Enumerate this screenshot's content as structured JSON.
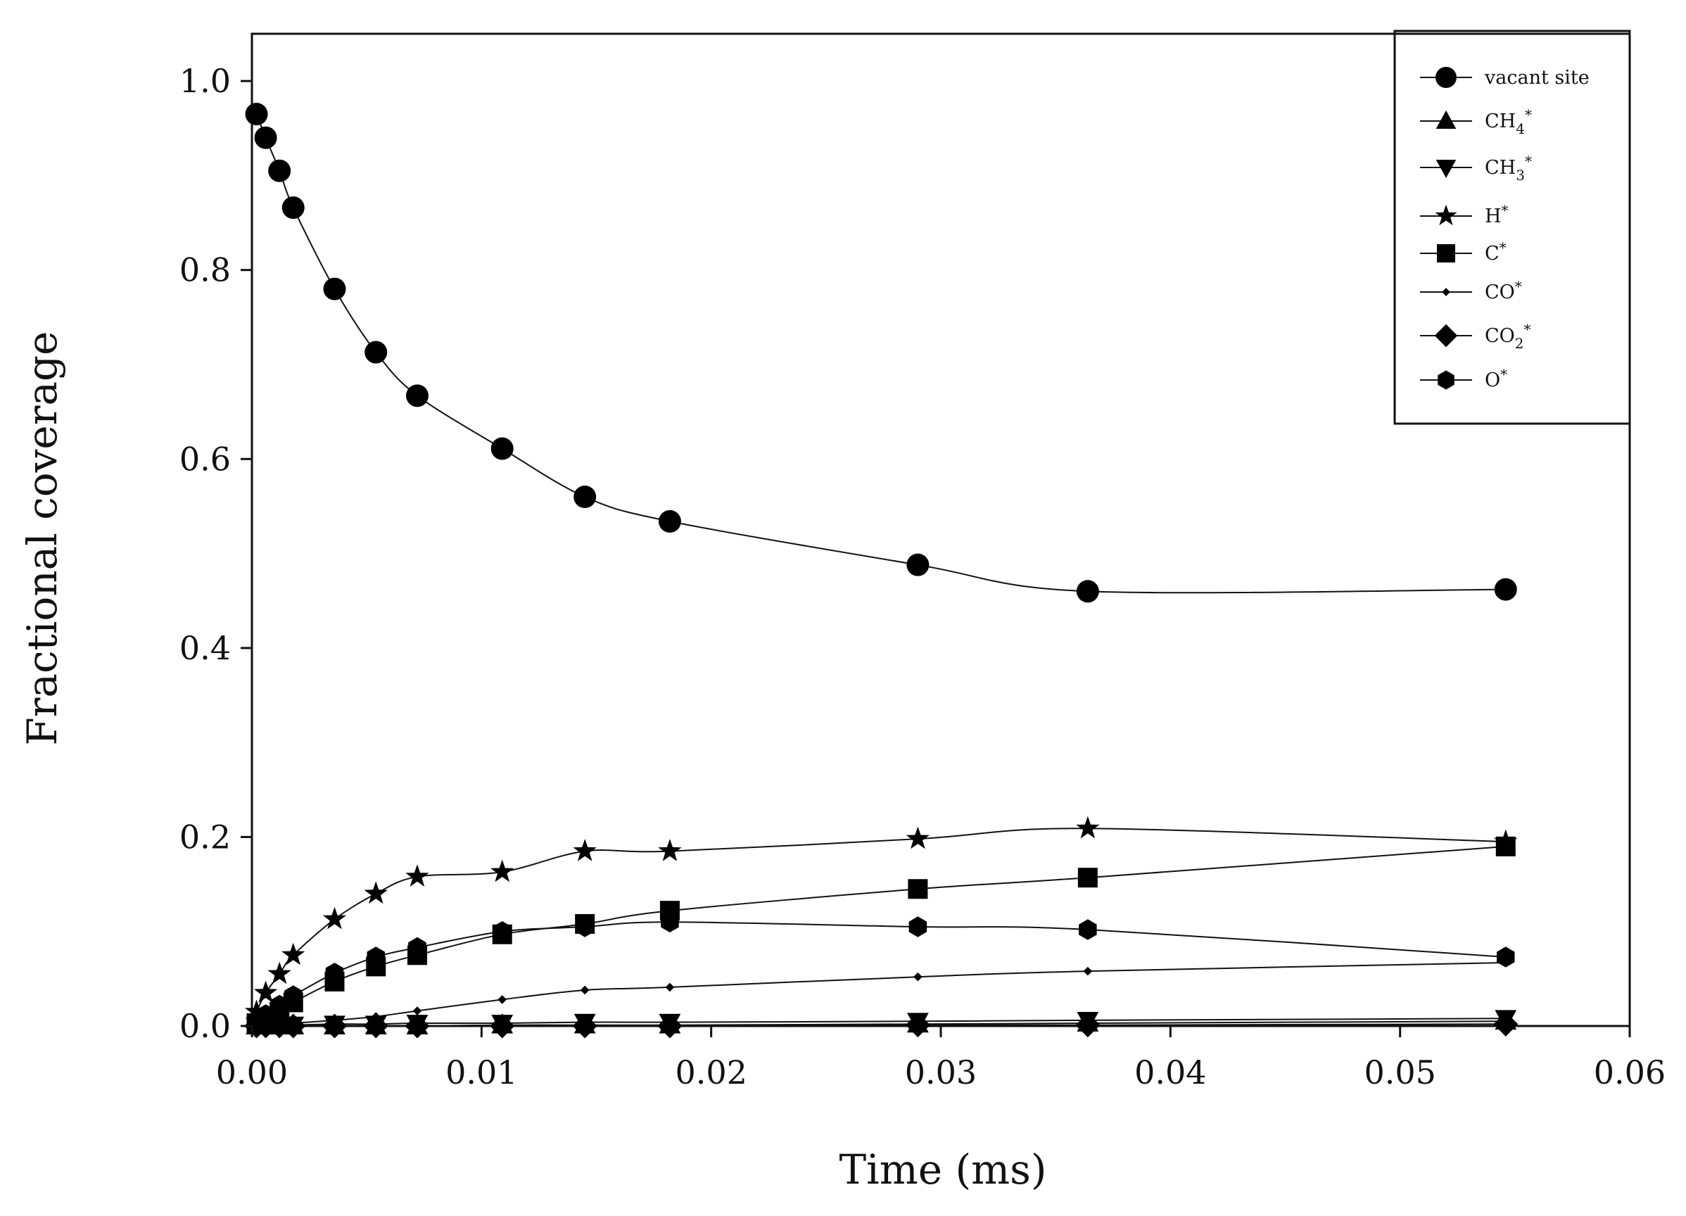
{
  "chart_data": {
    "type": "line",
    "title": "",
    "xlabel": "Time (ms)",
    "ylabel": "Fractional coverage",
    "xlim": [
      0,
      0.06
    ],
    "ylim": [
      0,
      1.05
    ],
    "xticks": [
      0,
      0.01,
      0.02,
      0.03,
      0.04,
      0.05,
      0.06
    ],
    "xtick_labels": [
      "0.00",
      "0.01",
      "0.02",
      "0.03",
      "0.04",
      "0.05",
      "0.06"
    ],
    "yticks": [
      0,
      0.2,
      0.4,
      0.6,
      0.8,
      1.0
    ],
    "ytick_labels": [
      "0.0",
      "0.2",
      "0.4",
      "0.6",
      "0.8",
      "1.0"
    ],
    "legend_position": "top-right",
    "grid": false,
    "x": [
      0.0002,
      0.0006,
      0.0012,
      0.0018,
      0.0036,
      0.0054,
      0.0072,
      0.0109,
      0.0145,
      0.0182,
      0.029,
      0.0364,
      0.0546
    ],
    "series": [
      {
        "name": "vacant site",
        "label_main": "vacant site",
        "label_sub": "",
        "label_sup": "",
        "marker": "circle",
        "values": [
          0.965,
          0.94,
          0.905,
          0.866,
          0.78,
          0.713,
          0.667,
          0.611,
          0.56,
          0.534,
          0.488,
          0.46,
          0.462
        ]
      },
      {
        "name": "CH4*",
        "label_main": "CH",
        "label_sub": "4",
        "label_sup": "*",
        "marker": "triangle-up",
        "values": [
          0.0,
          0.0,
          0.0,
          0.0,
          0.0,
          0.0,
          0.0,
          0.001,
          0.001,
          0.001,
          0.002,
          0.003,
          0.005
        ]
      },
      {
        "name": "CH3*",
        "label_main": "CH",
        "label_sub": "3",
        "label_sup": "*",
        "marker": "triangle-down",
        "values": [
          0.0,
          0.0,
          0.001,
          0.001,
          0.002,
          0.002,
          0.003,
          0.003,
          0.004,
          0.004,
          0.005,
          0.006,
          0.008
        ]
      },
      {
        "name": "H*",
        "label_main": "H",
        "label_sub": "",
        "label_sup": "*",
        "marker": "star",
        "values": [
          0.015,
          0.035,
          0.055,
          0.075,
          0.113,
          0.14,
          0.158,
          0.163,
          0.185,
          0.185,
          0.198,
          0.209,
          0.195
        ]
      },
      {
        "name": "C*",
        "label_main": "C",
        "label_sub": "",
        "label_sup": "*",
        "marker": "square",
        "values": [
          0.003,
          0.008,
          0.015,
          0.025,
          0.047,
          0.063,
          0.075,
          0.097,
          0.108,
          0.122,
          0.145,
          0.157,
          0.19
        ]
      },
      {
        "name": "CO*",
        "label_main": "CO",
        "label_sub": "",
        "label_sup": "*",
        "marker": "small-diamond",
        "values": [
          0.0,
          0.001,
          0.002,
          0.003,
          0.006,
          0.01,
          0.016,
          0.028,
          0.038,
          0.041,
          0.052,
          0.058,
          0.067
        ]
      },
      {
        "name": "CO2*",
        "label_main": "CO",
        "label_sub": "2",
        "label_sup": "*",
        "marker": "diamond",
        "values": [
          0.0,
          0.0,
          0.0,
          0.0,
          0.0,
          0.0,
          0.0,
          0.0,
          0.0,
          0.0,
          0.001,
          0.001,
          0.002
        ]
      },
      {
        "name": "O*",
        "label_main": "O",
        "label_sub": "",
        "label_sup": "*",
        "marker": "hexagon",
        "values": [
          0.005,
          0.012,
          0.022,
          0.032,
          0.056,
          0.073,
          0.083,
          0.1,
          0.105,
          0.11,
          0.105,
          0.102,
          0.073
        ]
      }
    ]
  }
}
